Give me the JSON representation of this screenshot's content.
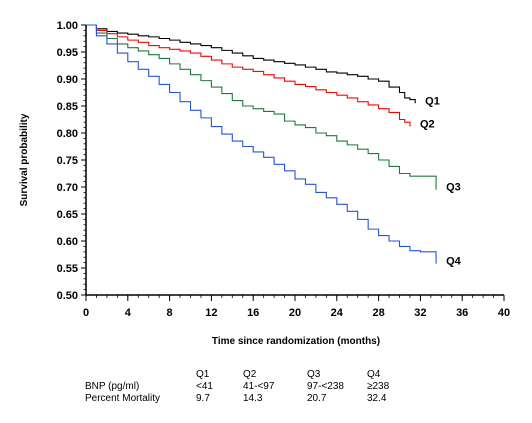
{
  "chart_data": {
    "type": "line",
    "subtype": "kaplan-meier step",
    "xlabel": "Time since randomization (months)",
    "ylabel": "Survival probability",
    "xlim": [
      0,
      40
    ],
    "ylim": [
      0.5,
      1.0
    ],
    "x_ticks": [
      "0",
      "4",
      "8",
      "12",
      "16",
      "20",
      "24",
      "28",
      "32",
      "36",
      "40"
    ],
    "x_tick_values": [
      0,
      4,
      8,
      12,
      16,
      20,
      24,
      28,
      32,
      36,
      40
    ],
    "y_ticks": [
      "0.50",
      "0.55",
      "0.60",
      "0.65",
      "0.70",
      "0.75",
      "0.80",
      "0.85",
      "0.90",
      "0.95",
      "1.00"
    ],
    "y_tick_values": [
      0.5,
      0.55,
      0.6,
      0.65,
      0.7,
      0.75,
      0.8,
      0.85,
      0.9,
      0.95,
      1.0
    ],
    "grid": false,
    "series": [
      {
        "name": "Q1",
        "color": "#000000",
        "x": [
          0,
          1,
          2,
          3,
          4,
          5,
          6,
          7,
          8,
          9,
          10,
          11,
          12,
          13,
          14,
          15,
          16,
          17,
          18,
          19,
          20,
          21,
          22,
          23,
          24,
          25,
          26,
          27,
          28,
          29,
          30,
          30.5,
          31,
          31.5
        ],
        "y": [
          1.0,
          0.993,
          0.988,
          0.985,
          0.983,
          0.98,
          0.978,
          0.975,
          0.972,
          0.968,
          0.965,
          0.962,
          0.958,
          0.953,
          0.948,
          0.943,
          0.938,
          0.935,
          0.932,
          0.929,
          0.926,
          0.922,
          0.918,
          0.913,
          0.911,
          0.908,
          0.905,
          0.9,
          0.896,
          0.885,
          0.875,
          0.865,
          0.862,
          0.855
        ]
      },
      {
        "name": "Q2",
        "color": "#ff0000",
        "x": [
          0,
          1,
          2,
          3,
          4,
          5,
          6,
          7,
          8,
          9,
          10,
          11,
          12,
          13,
          14,
          15,
          16,
          17,
          18,
          19,
          20,
          21,
          22,
          23,
          24,
          25,
          26,
          27,
          28,
          29,
          30,
          30.5,
          31
        ],
        "y": [
          1.0,
          0.99,
          0.984,
          0.978,
          0.972,
          0.968,
          0.962,
          0.958,
          0.955,
          0.952,
          0.948,
          0.942,
          0.935,
          0.928,
          0.922,
          0.918,
          0.914,
          0.908,
          0.902,
          0.896,
          0.89,
          0.886,
          0.88,
          0.875,
          0.87,
          0.865,
          0.858,
          0.852,
          0.845,
          0.838,
          0.825,
          0.82,
          0.812
        ]
      },
      {
        "name": "Q3",
        "color": "#1e7a3c",
        "x": [
          0,
          1,
          2,
          3,
          4,
          5,
          6,
          7,
          8,
          9,
          10,
          11,
          12,
          13,
          14,
          15,
          16,
          17,
          18,
          19,
          20,
          21,
          22,
          23,
          24,
          25,
          26,
          27,
          28,
          29,
          30,
          31,
          32,
          33.5
        ],
        "y": [
          1.0,
          0.985,
          0.975,
          0.965,
          0.958,
          0.952,
          0.945,
          0.938,
          0.928,
          0.918,
          0.908,
          0.897,
          0.885,
          0.873,
          0.86,
          0.85,
          0.845,
          0.84,
          0.835,
          0.822,
          0.815,
          0.81,
          0.8,
          0.795,
          0.785,
          0.778,
          0.77,
          0.762,
          0.75,
          0.738,
          0.725,
          0.72,
          0.72,
          0.695
        ]
      },
      {
        "name": "Q4",
        "color": "#2255dd",
        "x": [
          0,
          1,
          2,
          3,
          4,
          5,
          6,
          7,
          8,
          9,
          10,
          11,
          12,
          13,
          14,
          15,
          16,
          17,
          18,
          19,
          20,
          21,
          22,
          23,
          24,
          25,
          26,
          27,
          28,
          29,
          30,
          31,
          32,
          33.5
        ],
        "y": [
          1.0,
          0.98,
          0.965,
          0.948,
          0.932,
          0.918,
          0.905,
          0.89,
          0.875,
          0.858,
          0.842,
          0.828,
          0.812,
          0.798,
          0.785,
          0.775,
          0.765,
          0.755,
          0.742,
          0.73,
          0.715,
          0.705,
          0.69,
          0.68,
          0.668,
          0.655,
          0.64,
          0.622,
          0.61,
          0.6,
          0.59,
          0.582,
          0.58,
          0.558
        ]
      }
    ],
    "table": {
      "headers": [
        "Q1",
        "Q2",
        "Q3",
        "Q4"
      ],
      "rows": [
        {
          "label": "BNP (pg/ml)",
          "values": [
            "<41",
            "41-<97",
            "97-<238",
            "≥238"
          ]
        },
        {
          "label": "Percent Mortality",
          "values": [
            "9.7",
            "14.3",
            "20.7",
            "32.4"
          ]
        }
      ]
    }
  }
}
